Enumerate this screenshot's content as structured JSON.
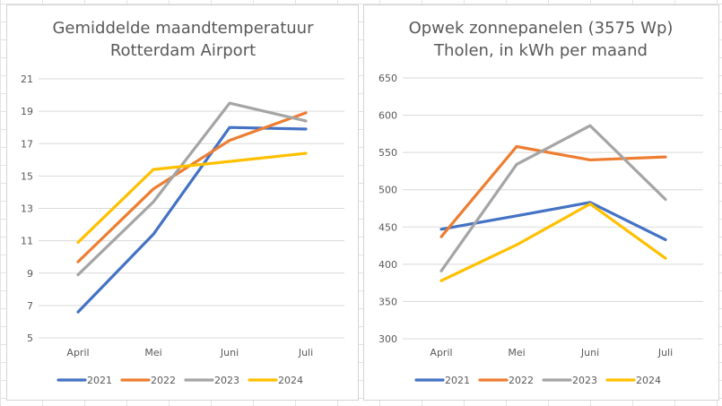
{
  "chart_data": [
    {
      "type": "line",
      "title": [
        "Gemiddelde maandtemperatuur",
        "Rotterdam Airport"
      ],
      "categories": [
        "April",
        "Mei",
        "Juni",
        "Juli"
      ],
      "ylim": [
        5,
        21
      ],
      "yticks": [
        5,
        7,
        9,
        11,
        13,
        15,
        17,
        19,
        21
      ],
      "grid": true,
      "legend": "bottom",
      "series": [
        {
          "name": "2021",
          "color": "#4472C4",
          "values": [
            6.6,
            11.4,
            18.0,
            17.9
          ]
        },
        {
          "name": "2022",
          "color": "#ED7D31",
          "values": [
            9.7,
            14.2,
            17.2,
            18.9
          ]
        },
        {
          "name": "2023",
          "color": "#A5A5A5",
          "values": [
            8.9,
            13.4,
            19.5,
            18.4
          ]
        },
        {
          "name": "2024",
          "color": "#FFC000",
          "values": [
            10.9,
            15.4,
            15.9,
            16.4
          ]
        }
      ]
    },
    {
      "type": "line",
      "title": [
        "Opwek zonnepanelen (3575 Wp)",
        "Tholen, in kWh per maand"
      ],
      "categories": [
        "April",
        "Mei",
        "Juni",
        "Juli"
      ],
      "ylim": [
        300,
        650
      ],
      "yticks": [
        300,
        350,
        400,
        450,
        500,
        550,
        600,
        650
      ],
      "grid": true,
      "legend": "bottom",
      "series": [
        {
          "name": "2021",
          "color": "#4472C4",
          "values": [
            447,
            465,
            483,
            433
          ]
        },
        {
          "name": "2022",
          "color": "#ED7D31",
          "values": [
            437,
            558,
            540,
            544
          ]
        },
        {
          "name": "2023",
          "color": "#A5A5A5",
          "values": [
            391,
            534,
            586,
            487
          ]
        },
        {
          "name": "2024",
          "color": "#FFC000",
          "values": [
            378,
            426,
            481,
            408
          ]
        }
      ]
    }
  ]
}
